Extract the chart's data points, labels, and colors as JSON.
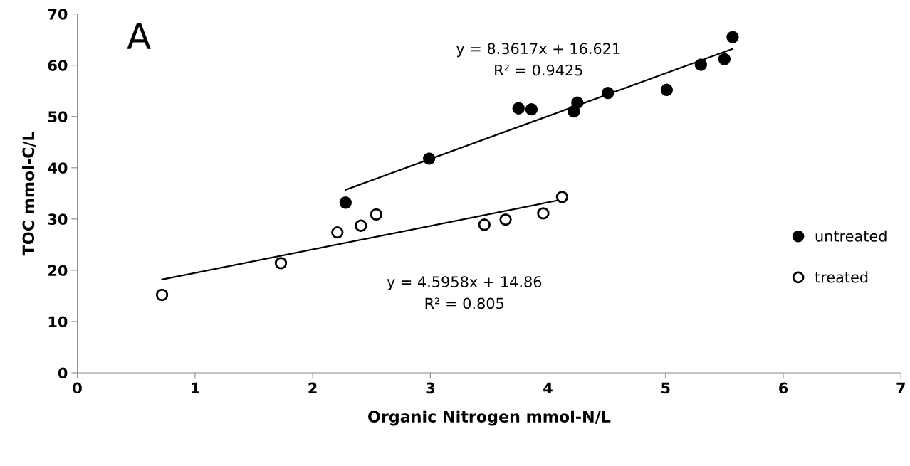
{
  "chart_data": {
    "type": "scatter",
    "xlabel": "Organic Nitrogen mmol-N/L",
    "ylabel": "TOC mmol-C/L",
    "xlim": [
      0,
      7
    ],
    "xticks": [
      0,
      1,
      2,
      3,
      4,
      5,
      6,
      7
    ],
    "ylim": [
      0,
      70
    ],
    "yticks": [
      0,
      10,
      20,
      30,
      40,
      50,
      60,
      70
    ],
    "grid": false,
    "legend": "right",
    "marker": "circle",
    "annotations": [
      "A",
      "y = 8.3617x + 16.621",
      "R² = 0.9425",
      "y = 4.5958x + 14.86",
      "R² = 0.805"
    ],
    "series": [
      {
        "name": "untreated",
        "color": "#000000",
        "x": [
          2.28,
          2.99,
          3.75,
          3.86,
          4.22,
          4.25,
          4.51,
          5.01,
          5.3,
          5.5,
          5.57
        ],
        "values": [
          33.2,
          41.8,
          51.6,
          51.4,
          51.0,
          52.7,
          54.6,
          55.2,
          60.1,
          61.2,
          65.5
        ]
      },
      {
        "name": "treated",
        "color": "#ffffff",
        "x": [
          0.72,
          1.73,
          2.21,
          2.41,
          2.54,
          3.46,
          3.64,
          3.96,
          4.12
        ],
        "values": [
          15.2,
          21.4,
          27.4,
          28.7,
          30.9,
          28.9,
          29.9,
          31.1,
          34.3
        ]
      },
      {
        "type": "line",
        "marker": "none",
        "color": "#000000",
        "x": [
          2.28,
          5.57
        ],
        "values": [
          35.7,
          63.2
        ]
      },
      {
        "type": "line",
        "marker": "none",
        "color": "#000000",
        "x": [
          0.72,
          4.12
        ],
        "values": [
          18.2,
          33.8
        ]
      }
    ]
  }
}
